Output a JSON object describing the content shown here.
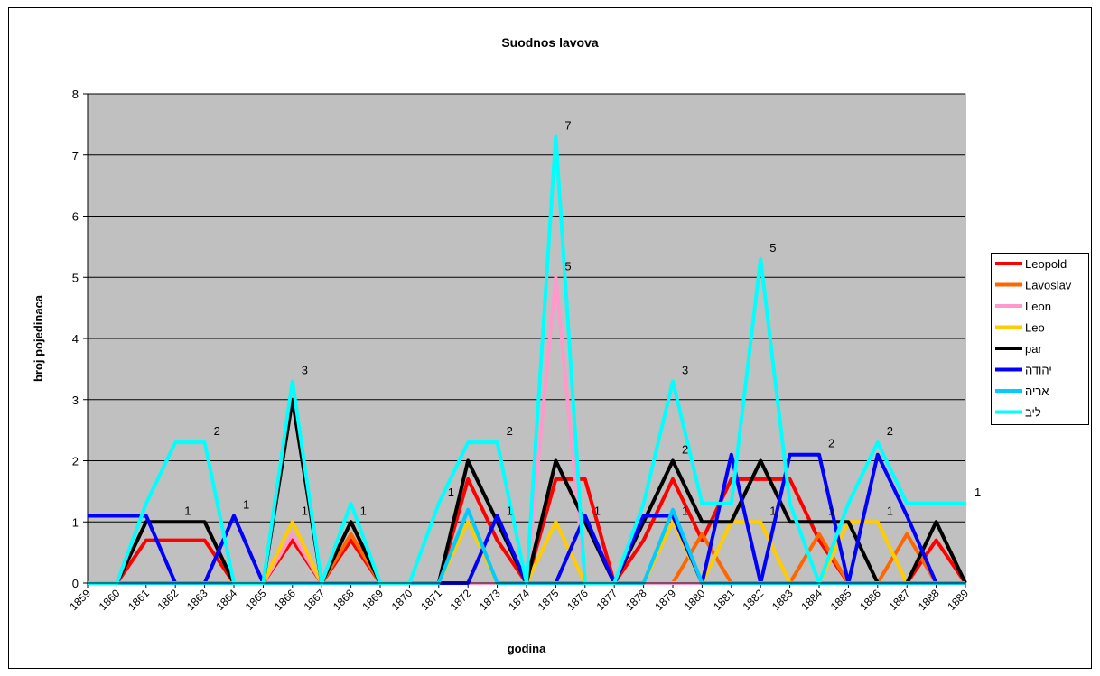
{
  "chart_data": {
    "type": "line",
    "title": "Suodnos lavova",
    "xlabel": "godina",
    "ylabel": "broj pojedinaca",
    "categories": [
      "1859",
      "1860",
      "1861",
      "1862",
      "1863",
      "1864",
      "1865",
      "1866",
      "1867",
      "1868",
      "1869",
      "1870",
      "1871",
      "1872",
      "1873",
      "1874",
      "1875",
      "1876",
      "1877",
      "1878",
      "1879",
      "1880",
      "1881",
      "1882",
      "1883",
      "1884",
      "1885",
      "1886",
      "1887",
      "1888",
      "1889"
    ],
    "ylim": [
      0,
      8
    ],
    "yticks": [
      0,
      1,
      2,
      3,
      4,
      5,
      6,
      7,
      8
    ],
    "grid": true,
    "series": [
      {
        "name": "Leopold",
        "color": "#ff0000",
        "values": [
          0,
          0,
          0.7,
          0.7,
          0.7,
          0,
          0,
          0.7,
          0,
          0.7,
          0,
          0,
          0,
          1.7,
          0.7,
          0,
          1.7,
          1.7,
          0,
          0.7,
          1.7,
          0.7,
          1.7,
          1.7,
          1.7,
          0.7,
          0,
          0,
          0,
          0.7,
          0
        ]
      },
      {
        "name": "Lavoslav",
        "color": "#ff6600",
        "values": [
          0,
          0,
          0,
          0,
          0,
          0,
          0,
          0,
          0,
          0.8,
          0,
          0,
          0,
          0,
          0,
          0,
          0,
          0,
          0,
          0,
          0,
          0.8,
          0,
          0,
          0,
          0.8,
          0,
          0,
          0.8,
          0,
          0
        ]
      },
      {
        "name": "Leon",
        "color": "#ff99cc",
        "values": [
          0,
          0,
          0,
          0,
          0,
          0,
          0,
          0.8,
          0,
          0,
          0,
          0,
          0,
          0,
          0,
          0,
          5,
          0,
          0,
          0,
          0,
          0,
          0,
          0,
          0,
          0,
          0,
          0,
          0,
          0,
          0
        ]
      },
      {
        "name": "Leo",
        "color": "#ffcc00",
        "values": [
          0,
          0,
          0,
          0,
          0,
          0,
          0,
          1,
          0,
          0,
          0,
          0,
          0,
          1,
          0,
          0,
          1,
          0,
          0,
          0,
          1,
          0,
          1,
          1,
          0,
          0,
          1,
          1,
          0,
          0,
          0
        ]
      },
      {
        "name": "par",
        "color": "#000000",
        "values": [
          0,
          0,
          1,
          1,
          1,
          0,
          0,
          3,
          0,
          1,
          0,
          0,
          0,
          2,
          1,
          0,
          2,
          1,
          0,
          1,
          2,
          1,
          1,
          2,
          1,
          1,
          1,
          0,
          0,
          1,
          0
        ]
      },
      {
        "name": "יהודה",
        "color": "#0000ff",
        "values": [
          1.1,
          1.1,
          1.1,
          0,
          0,
          1.1,
          0,
          0,
          0,
          0,
          0,
          0,
          0,
          0,
          1.1,
          0,
          0,
          1.1,
          0,
          1.1,
          1.1,
          0,
          2.1,
          0,
          2.1,
          2.1,
          0,
          2.1,
          1.1,
          0,
          0
        ]
      },
      {
        "name": "אריה",
        "color": "#00ccff",
        "values": [
          0,
          0,
          0,
          0,
          0,
          0,
          0,
          0,
          0,
          0,
          0,
          0,
          0,
          1.2,
          0,
          0,
          0,
          0,
          0,
          0,
          1.2,
          0,
          0,
          0,
          0,
          0,
          0,
          0,
          0,
          0,
          0
        ]
      },
      {
        "name": "ליב",
        "color": "#00ffff",
        "values": [
          0,
          0,
          1.3,
          2.3,
          2.3,
          0,
          0,
          3.3,
          0,
          1.3,
          0,
          0,
          1.3,
          2.3,
          2.3,
          0,
          7.3,
          0,
          0,
          1.3,
          3.3,
          1.3,
          1.3,
          5.3,
          1.3,
          0,
          1.3,
          2.3,
          1.3,
          1.3,
          1.3
        ]
      }
    ],
    "annotations": [
      {
        "text": "1",
        "category": "1862",
        "series": "par"
      },
      {
        "text": "2",
        "category": "1863",
        "series": "ליב"
      },
      {
        "text": "1",
        "category": "1864",
        "series": "יהודה"
      },
      {
        "text": "3",
        "category": "1866",
        "series": "ליב"
      },
      {
        "text": "1",
        "category": "1866",
        "series": "Leo"
      },
      {
        "text": "1",
        "category": "1868",
        "series": "par"
      },
      {
        "text": "1",
        "category": "1871",
        "series": "ליב"
      },
      {
        "text": "2",
        "category": "1873",
        "series": "ליב"
      },
      {
        "text": "1",
        "category": "1873",
        "series": "par"
      },
      {
        "text": "7",
        "category": "1875",
        "series": "ליב"
      },
      {
        "text": "5",
        "category": "1875",
        "series": "Leon"
      },
      {
        "text": "1",
        "category": "1876",
        "series": "par"
      },
      {
        "text": "3",
        "category": "1879",
        "series": "ליב"
      },
      {
        "text": "2",
        "category": "1879",
        "series": "par"
      },
      {
        "text": "1",
        "category": "1879",
        "series": "Leo"
      },
      {
        "text": "1",
        "category": "1882",
        "series": "Leo"
      },
      {
        "text": "5",
        "category": "1882",
        "series": "ליב"
      },
      {
        "text": "2",
        "category": "1884",
        "series": "יהודה"
      },
      {
        "text": "1",
        "category": "1884",
        "series": "par"
      },
      {
        "text": "1",
        "category": "1886",
        "series": "Leo"
      },
      {
        "text": "2",
        "category": "1886",
        "series": "ליב"
      },
      {
        "text": "1",
        "category": "1889",
        "series": "ליב"
      }
    ]
  }
}
